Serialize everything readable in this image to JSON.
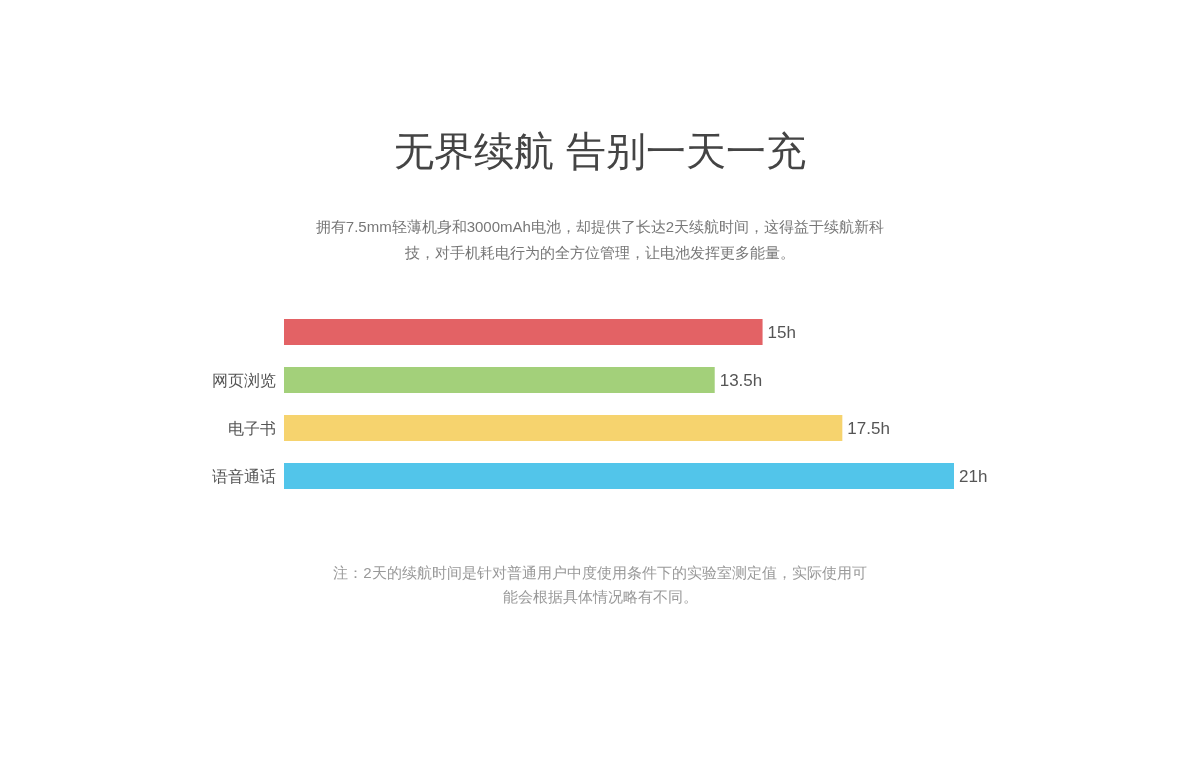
{
  "chart_data": {
    "type": "bar",
    "orientation": "horizontal",
    "title": "无界续航 告别一天一充",
    "subtitle": "拥有7.5mm轻薄机身和3000mAh电池，却提供了长达2天续航时间，这得益于续航新科技，对手机耗电行为的全方位管理，让电池发挥更多能量。",
    "categories": [
      null,
      "网页浏览",
      "电子书",
      "语音通话"
    ],
    "values": [
      15,
      13.5,
      17.5,
      21
    ],
    "colors": [
      "#e36265",
      "#a3d07a",
      "#f6d36e",
      "#52c5ea"
    ],
    "value_labels": [
      "15h",
      "13.5h",
      "17.5h",
      "21h"
    ],
    "grid": false,
    "legend": false,
    "annotations": [
      "注：2天的续航时间是针对普通用户中度使用条件下的实验室测定值，实际使用可能会根据具体情况略有不同。"
    ]
  }
}
